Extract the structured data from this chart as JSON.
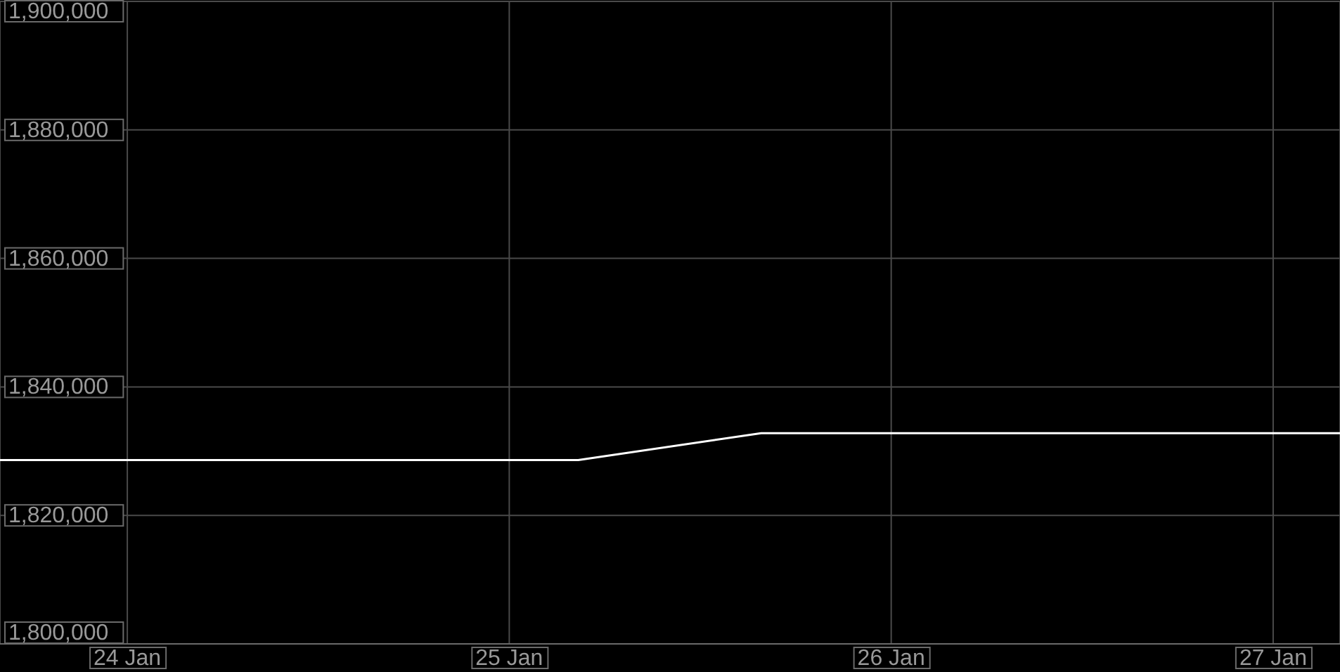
{
  "chart_data": {
    "type": "line",
    "x": [
      "--01-23T16:00",
      "--01-25T04:20",
      "--01-25T15:50",
      "--01-27T04:12"
    ],
    "series": [
      {
        "color": "#ffffff",
        "values": [
          1828600,
          1828600,
          1832800,
          1832800
        ]
      }
    ],
    "xlim": [
      "--01-23T16:00",
      "--01-27T04:12"
    ],
    "xticks": [
      {
        "value": "--01-24",
        "label": "24 Jan"
      },
      {
        "value": "--01-25",
        "label": "25 Jan"
      },
      {
        "value": "--01-26",
        "label": "26 Jan"
      },
      {
        "value": "--01-27",
        "label": "27 Jan"
      }
    ],
    "ylim": [
      1800000,
      1900000
    ],
    "yticks": [
      {
        "value": 1800000,
        "label": "1,800,000"
      },
      {
        "value": 1820000,
        "label": "1,820,000"
      },
      {
        "value": 1840000,
        "label": "1,840,000"
      },
      {
        "value": 1860000,
        "label": "1,860,000"
      },
      {
        "value": 1880000,
        "label": "1,880,000"
      },
      {
        "value": 1900000,
        "label": "1,900,000"
      }
    ],
    "grid": true,
    "marker": "none",
    "line_style": "solid"
  }
}
